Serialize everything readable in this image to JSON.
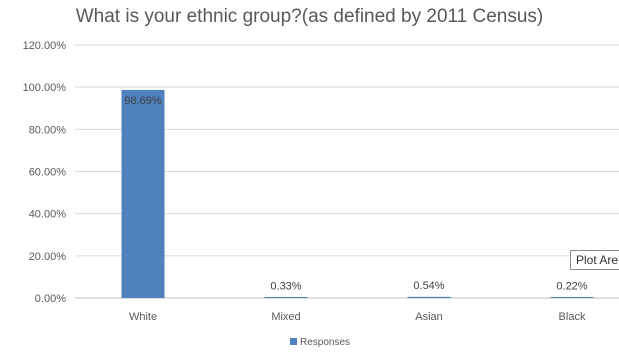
{
  "chart_data": {
    "type": "bar",
    "title": "What is your ethnic group?(as defined by 2011 Census)",
    "categories": [
      "White",
      "Mixed",
      "Asian",
      "Black"
    ],
    "series": [
      {
        "name": "Responses",
        "values": [
          98.69,
          0.33,
          0.54,
          0.22
        ],
        "labels": [
          "98.69%",
          "0.33%",
          "0.54%",
          "0.22%"
        ]
      }
    ],
    "ylim": [
      0,
      120
    ],
    "yticks": [
      0,
      20,
      40,
      60,
      80,
      100,
      120
    ],
    "ytick_labels": [
      "0.00%",
      "20.00%",
      "40.00%",
      "60.00%",
      "80.00%",
      "100.00%",
      "120.00%"
    ],
    "grid": true,
    "legend_position": "bottom",
    "colors": {
      "bar": "#4f81bd",
      "grid": "#d9d9d9",
      "axis": "#bfbfbf",
      "text": "#595959"
    }
  },
  "tooltip": {
    "text": "Plot Are"
  }
}
